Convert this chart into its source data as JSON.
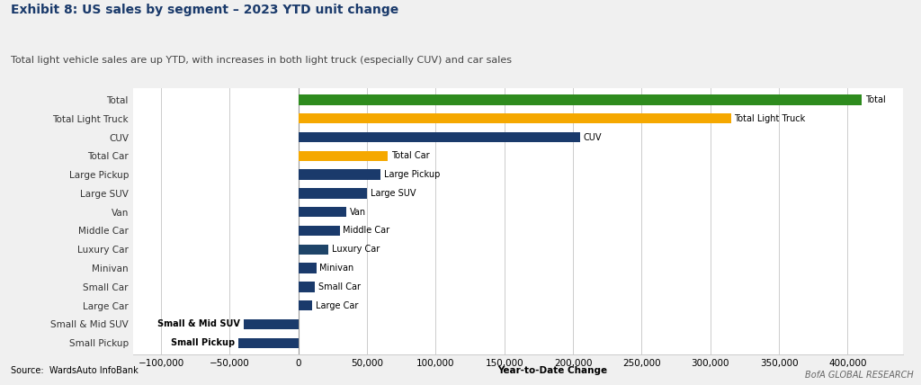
{
  "title": "Exhibit 8: US sales by segment – 2023 YTD unit change",
  "subtitle": "Total light vehicle sales are up YTD, with increases in both light truck (especially CUV) and car sales",
  "source": "Source:  WardsAuto InfoBank",
  "footer": "BofA GLOBAL RESEARCH",
  "xlabel": "Year-to-Date Change",
  "categories": [
    "Small Pickup",
    "Small & Mid SUV",
    "Large Car",
    "Small Car",
    "Minivan",
    "Luxury Car",
    "Middle Car",
    "Van",
    "Large SUV",
    "Large Pickup",
    "Total Car",
    "CUV",
    "Total Light Truck",
    "Total"
  ],
  "values": [
    -44000,
    -40000,
    10000,
    12000,
    13000,
    22000,
    30000,
    35000,
    50000,
    60000,
    65000,
    205000,
    315000,
    410000
  ],
  "colors": [
    "#1a3a6b",
    "#1a3a6b",
    "#1a3a6b",
    "#1a3a6b",
    "#1a3a6b",
    "#1e4468",
    "#1a3a6b",
    "#1a3a6b",
    "#1a3a6b",
    "#1a3a6b",
    "#f5a800",
    "#1a3a6b",
    "#f5a800",
    "#2e8b1e"
  ],
  "bar_labels": [
    "Small Pickup",
    "Small & Mid SUV",
    "Large Car",
    "Small Car",
    "Minivan",
    "Luxury Car",
    "Middle Car",
    "Van",
    "Large SUV",
    "Large Pickup",
    "Total Car",
    "CUV",
    "Total Light Truck",
    "Total"
  ],
  "label_bold": [
    true,
    true,
    false,
    false,
    false,
    false,
    false,
    false,
    false,
    false,
    false,
    false,
    false,
    false
  ],
  "xlim": [
    -120000,
    440000
  ],
  "xticks": [
    -100000,
    -50000,
    0,
    50000,
    100000,
    150000,
    200000,
    250000,
    300000,
    350000,
    400000
  ],
  "bg_color": "#f0f0f0",
  "plot_bg_color": "#ffffff",
  "grid_color": "#cccccc",
  "bar_height": 0.55,
  "title_color": "#1a3a6b",
  "subtitle_color": "#444444",
  "title_fontsize": 10,
  "subtitle_fontsize": 8,
  "tick_fontsize": 7.5,
  "label_fontsize": 7,
  "ytick_fontsize": 7.5
}
